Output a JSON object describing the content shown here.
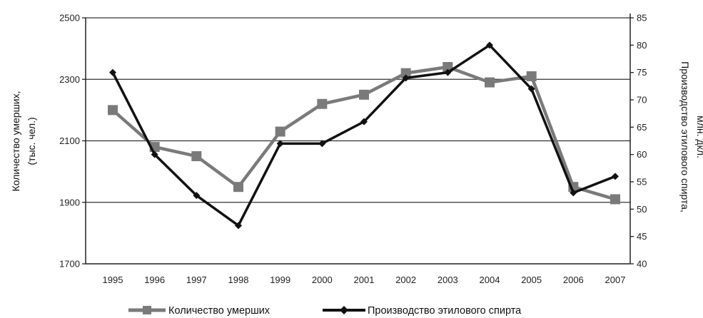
{
  "chart_data": {
    "type": "line",
    "categories": [
      "1995",
      "1996",
      "1997",
      "1998",
      "1999",
      "2000",
      "2001",
      "2002",
      "2003",
      "2004",
      "2005",
      "2006",
      "2007"
    ],
    "series": [
      {
        "name": "Количество умерших",
        "axis": "left",
        "color": "#7a7a7a",
        "marker": "square",
        "values": [
          2200,
          2080,
          2050,
          1950,
          2130,
          2220,
          2250,
          2320,
          2340,
          2290,
          2310,
          1950,
          1910
        ]
      },
      {
        "name": "Производство этилового спирта",
        "axis": "right",
        "color": "#111111",
        "marker": "diamond",
        "values": [
          75,
          60,
          52.5,
          47,
          62,
          62,
          66,
          74,
          75,
          80,
          72,
          53,
          56
        ]
      }
    ],
    "left_axis": {
      "label_line1": "Количество умерших,",
      "label_line2": "(тыс. чел.)",
      "ticks": [
        1700,
        1900,
        2100,
        2300,
        2500
      ],
      "ylim": [
        1700,
        2500
      ]
    },
    "right_axis": {
      "label_line1": "Производство этилового спирта,",
      "label_line2": "млн. дкл.",
      "ticks": [
        40,
        45,
        50,
        55,
        60,
        65,
        70,
        75,
        80,
        85
      ],
      "ylim": [
        40,
        85
      ]
    },
    "gridlines": "horizontal",
    "legend_position": "bottom"
  }
}
